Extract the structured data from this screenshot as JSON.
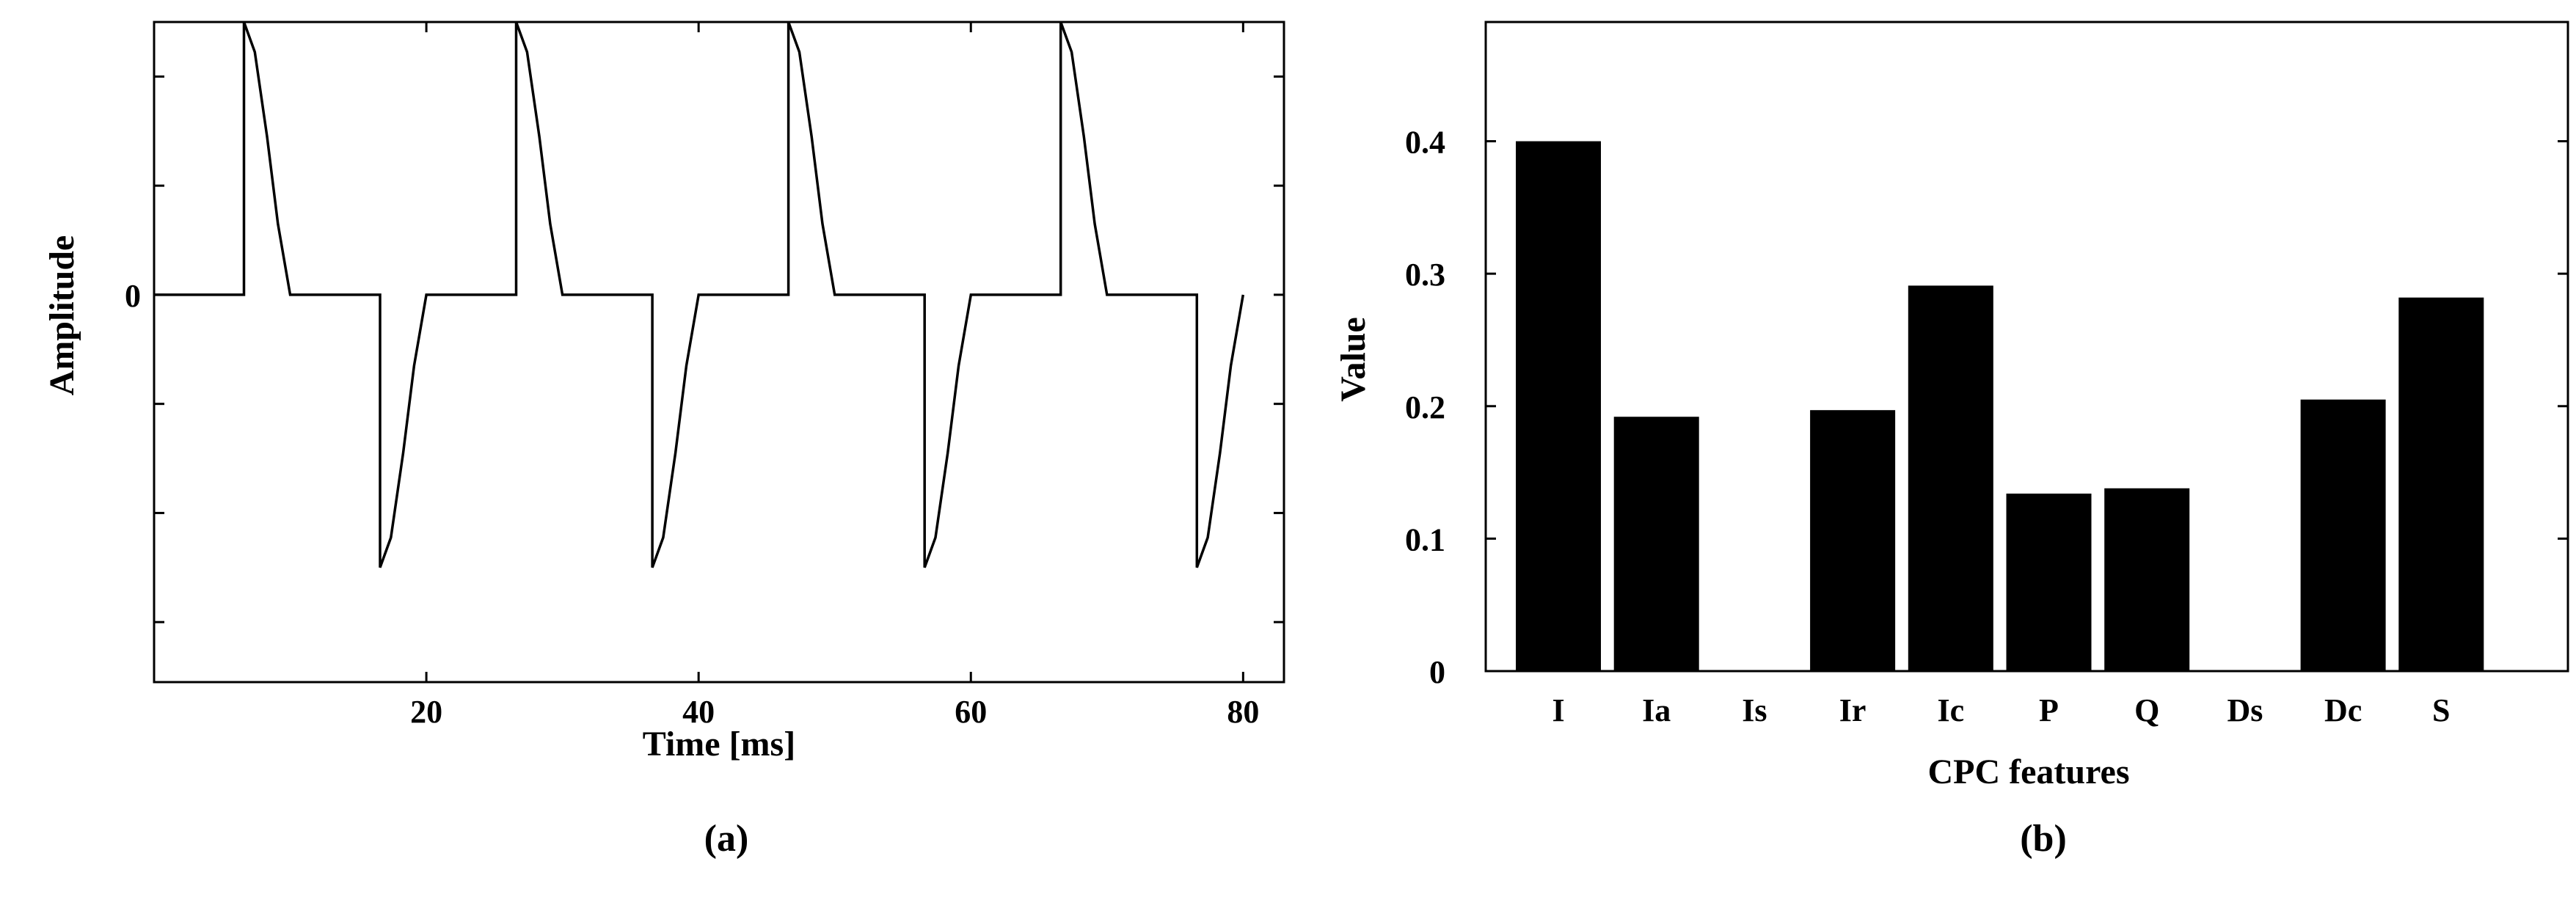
{
  "panel_a": {
    "caption": "(a)",
    "xlabel": "Time [ms]",
    "ylabel": "Amplitude",
    "x_tick_labels": [
      "20",
      "40",
      "60",
      "80"
    ],
    "y_tick_labels": [
      "0"
    ]
  },
  "panel_b": {
    "caption": "(b)",
    "xlabel": "CPC features",
    "ylabel": "Value",
    "y_tick_labels": [
      "0",
      "0.1",
      "0.2",
      "0.3",
      "0.4"
    ]
  },
  "chart_data": [
    {
      "type": "line",
      "title": "",
      "xlabel": "Time [ms]",
      "ylabel": "Amplitude",
      "xlim": [
        0,
        83
      ],
      "ylim": [
        -1.42,
        1.0
      ],
      "xticks": [
        20,
        40,
        60,
        80
      ],
      "yticks": [
        0
      ],
      "grid": false,
      "series": [
        {
          "x": [
            0,
            6.6,
            6.6,
            7.4,
            8.3,
            9.1,
            10.0,
            16.6,
            16.6,
            17.4,
            18.3,
            19.1,
            20.0,
            26.6,
            26.6,
            27.4,
            28.3,
            29.1,
            30.0,
            36.6,
            36.6,
            37.4,
            38.3,
            39.1,
            40.0,
            46.6,
            46.6,
            47.4,
            48.3,
            49.1,
            50.0,
            56.6,
            56.6,
            57.4,
            58.3,
            59.1,
            60.0,
            66.6,
            66.6,
            67.4,
            68.3,
            69.1,
            70.0,
            76.6,
            76.6,
            77.4,
            78.3,
            79.1,
            80.0
          ],
          "y": [
            0,
            0,
            1.0,
            0.89,
            0.58,
            0.26,
            0,
            0,
            -1.0,
            -0.89,
            -0.58,
            -0.26,
            0,
            0,
            1.0,
            0.89,
            0.58,
            0.26,
            0,
            0,
            -1.0,
            -0.89,
            -0.58,
            -0.26,
            0,
            0,
            1.0,
            0.89,
            0.58,
            0.26,
            0,
            0,
            -1.0,
            -0.89,
            -0.58,
            -0.26,
            0,
            0,
            1.0,
            0.89,
            0.58,
            0.26,
            0,
            0,
            -1.0,
            -0.89,
            -0.58,
            -0.26,
            0
          ],
          "color": "#000000"
        }
      ]
    },
    {
      "type": "bar",
      "title": "",
      "xlabel": "CPC features",
      "ylabel": "Value",
      "categories": [
        "I",
        "Ia",
        "Is",
        "Ir",
        "Ic",
        "P",
        "Q",
        "Ds",
        "Dc",
        "S"
      ],
      "values": [
        0.4,
        0.192,
        0,
        0.197,
        0.291,
        0.134,
        0.138,
        0,
        0.205,
        0.282
      ],
      "ylim": [
        0,
        0.49
      ],
      "yticks": [
        0,
        0.1,
        0.2,
        0.3,
        0.4
      ],
      "grid": false,
      "bar_color": "#000000"
    }
  ]
}
